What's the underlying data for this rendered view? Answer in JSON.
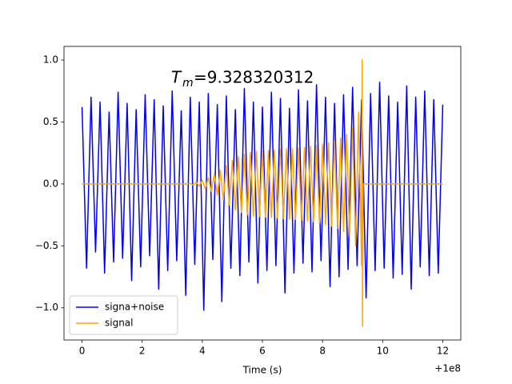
{
  "chart_data": {
    "type": "line",
    "xlabel": "Time (s)",
    "x_offset_label": "+1e8",
    "annotation": {
      "symbol": "T",
      "subscript": "m",
      "text": "=9.328320312"
    },
    "xlim": [
      -0.6,
      12.6
    ],
    "xticks": [
      0,
      2,
      4,
      6,
      8,
      10,
      12
    ],
    "ylim": [
      -1.26,
      1.11
    ],
    "yticks": [
      {
        "value": -1.0,
        "label": "−1.0"
      },
      {
        "value": -0.5,
        "label": "−0.5"
      },
      {
        "value": 0.0,
        "label": "0.0"
      },
      {
        "value": 0.5,
        "label": "0.5"
      },
      {
        "value": 1.0,
        "label": "1.0"
      }
    ],
    "legend": "lower left",
    "series": [
      {
        "name": "signa+noise",
        "color": "#0000ff",
        "x": [
          0,
          0.15,
          0.3,
          0.45,
          0.6,
          0.75,
          0.9,
          1.05,
          1.2,
          1.35,
          1.5,
          1.65,
          1.8,
          1.95,
          2.1,
          2.25,
          2.4,
          2.55,
          2.7,
          2.85,
          3,
          3.15,
          3.3,
          3.45,
          3.6,
          3.75,
          3.9,
          4.05,
          4.2,
          4.35,
          4.5,
          4.65,
          4.8,
          4.95,
          5.1,
          5.25,
          5.4,
          5.55,
          5.7,
          5.85,
          6,
          6.15,
          6.3,
          6.45,
          6.6,
          6.75,
          6.9,
          7.05,
          7.2,
          7.35,
          7.5,
          7.65,
          7.8,
          7.95,
          8.1,
          8.25,
          8.4,
          8.55,
          8.7,
          8.85,
          9,
          9.15,
          9.3,
          9.45,
          9.6,
          9.75,
          9.9,
          10.05,
          10.2,
          10.35,
          10.5,
          10.65,
          10.8,
          10.95,
          11.1,
          11.25,
          11.4,
          11.55,
          11.7,
          11.85,
          12
        ],
        "values": [
          0.62,
          -0.68,
          0.7,
          -0.55,
          0.66,
          -0.72,
          0.58,
          -0.63,
          0.74,
          -0.6,
          0.65,
          -0.78,
          0.6,
          -0.67,
          0.72,
          -0.58,
          0.68,
          -0.85,
          0.63,
          -0.7,
          0.75,
          -0.62,
          0.59,
          -0.9,
          0.7,
          -0.65,
          0.66,
          -1.02,
          0.73,
          -0.61,
          0.64,
          -0.95,
          0.71,
          -0.68,
          0.6,
          -0.74,
          0.77,
          -0.63,
          0.66,
          -0.8,
          0.62,
          -0.7,
          0.74,
          -0.66,
          0.69,
          -0.88,
          0.61,
          -0.72,
          0.76,
          -0.64,
          0.67,
          -0.71,
          0.8,
          -0.62,
          0.7,
          -0.83,
          0.65,
          -0.75,
          0.72,
          -0.69,
          0.78,
          -0.66,
          0.68,
          -0.92,
          0.73,
          -0.7,
          0.82,
          -0.68,
          0.71,
          -0.76,
          0.66,
          -0.73,
          0.79,
          -0.85,
          0.7,
          -0.67,
          0.75,
          -0.74,
          0.68,
          -0.72,
          0.64
        ]
      },
      {
        "name": "signal",
        "color": "#ffa500",
        "x": [
          0,
          3.5,
          3.6,
          3.7,
          3.8,
          3.9,
          4.0,
          4.1,
          4.2,
          4.3,
          4.4,
          4.5,
          4.6,
          4.7,
          4.8,
          4.9,
          5.0,
          5.1,
          5.2,
          5.3,
          5.4,
          5.5,
          5.6,
          5.7,
          5.8,
          5.9,
          6.0,
          6.1,
          6.2,
          6.3,
          6.4,
          6.5,
          6.6,
          6.7,
          6.8,
          6.9,
          7.0,
          7.1,
          7.2,
          7.3,
          7.4,
          7.5,
          7.6,
          7.7,
          7.8,
          7.9,
          8.0,
          8.1,
          8.2,
          8.3,
          8.4,
          8.5,
          8.6,
          8.7,
          8.8,
          8.9,
          9.0,
          9.1,
          9.2,
          9.3,
          9.32,
          9.33,
          9.35,
          12
        ],
        "values": [
          0,
          0,
          0.005,
          -0.01,
          0.015,
          -0.02,
          0.03,
          -0.04,
          0.05,
          -0.06,
          0.08,
          -0.09,
          0.11,
          -0.13,
          0.15,
          -0.17,
          0.19,
          -0.21,
          0.22,
          -0.23,
          0.24,
          -0.25,
          0.255,
          -0.26,
          0.262,
          -0.264,
          0.266,
          -0.268,
          0.27,
          -0.272,
          0.274,
          -0.276,
          0.278,
          -0.28,
          0.282,
          -0.284,
          0.286,
          -0.288,
          0.29,
          -0.293,
          0.296,
          -0.3,
          0.303,
          -0.307,
          0.311,
          -0.316,
          0.32,
          -0.326,
          0.333,
          -0.34,
          0.35,
          -0.36,
          0.37,
          -0.385,
          0.4,
          -0.42,
          0.45,
          -0.5,
          0.58,
          -0.66,
          1.0,
          -1.15,
          0,
          0
        ]
      }
    ]
  }
}
